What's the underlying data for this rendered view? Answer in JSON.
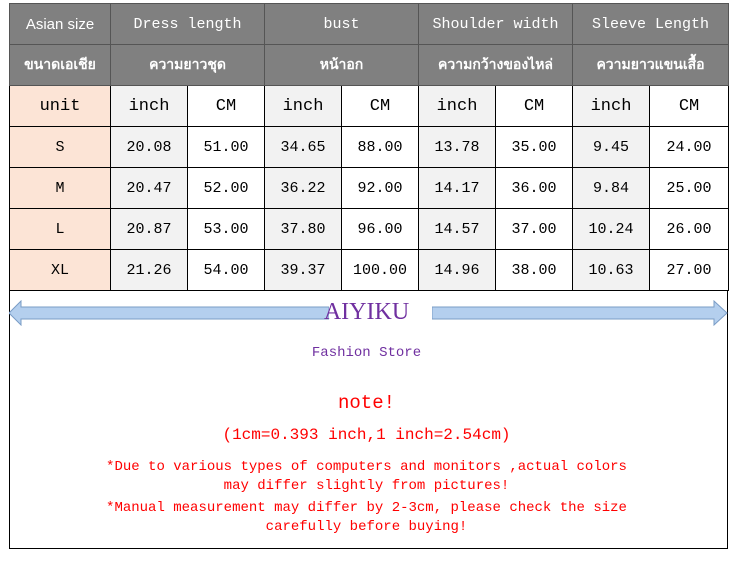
{
  "header": {
    "size": "Asian size",
    "cols": [
      "Dress length",
      "bust",
      "Shoulder width",
      "Sleeve Length"
    ]
  },
  "header_thai": {
    "size": "ขนาดเอเชีย",
    "cols": [
      "ความยาวชุด",
      "หน้าอก",
      "ความกว้างของไหล่",
      "ความยาวแขนเสื้อ"
    ]
  },
  "units": {
    "label": "unit",
    "inch": "inch",
    "cm": "CM"
  },
  "rows": [
    {
      "size": "S",
      "v": [
        "20.08",
        "51.00",
        "34.65",
        "88.00",
        "13.78",
        "35.00",
        "9.45",
        "24.00"
      ]
    },
    {
      "size": "M",
      "v": [
        "20.47",
        "52.00",
        "36.22",
        "92.00",
        "14.17",
        "36.00",
        "9.84",
        "25.00"
      ]
    },
    {
      "size": "L",
      "v": [
        "20.87",
        "53.00",
        "37.80",
        "96.00",
        "14.57",
        "37.00",
        "10.24",
        "26.00"
      ]
    },
    {
      "size": "XL",
      "v": [
        "21.26",
        "54.00",
        "39.37",
        "100.00",
        "14.96",
        "38.00",
        "10.63",
        "27.00"
      ]
    }
  ],
  "footer": {
    "brand": "AIYIKU",
    "store": "Fashion Store",
    "note": "note!",
    "conversion": "(1cm=0.393 inch,1 inch=2.54cm)",
    "disclaimer1": "*Due to various types of computers and monitors ,actual colors",
    "disclaimer1b": "may differ slightly from pictures!",
    "disclaimer2": "*Manual measurement may differ by 2-3cm, please check the size",
    "disclaimer2b": "carefully before  buying!"
  },
  "colors": {
    "header": "#808080",
    "size_col": "#fce4d6",
    "inch_col": "#f2f2f2",
    "brand": "#7030a0",
    "warning": "#ff0000",
    "arrow": "#b4cfee"
  }
}
